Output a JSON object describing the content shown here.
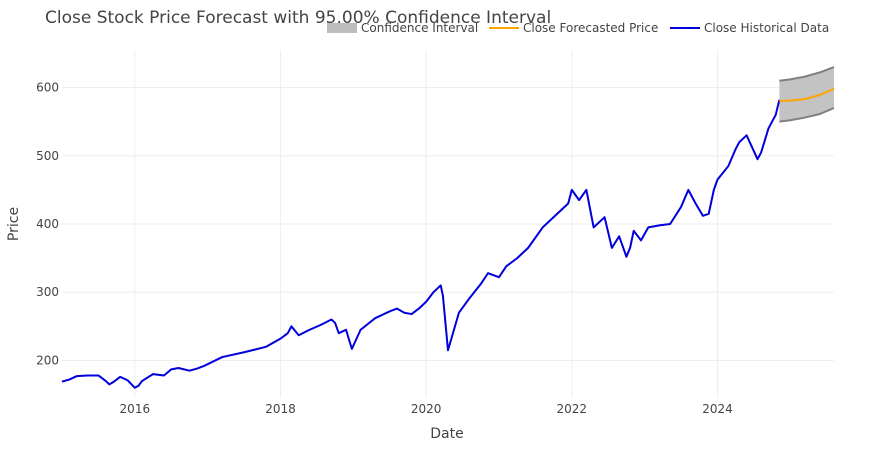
{
  "chart_data": {
    "type": "line",
    "title": "Close Stock Price Forecast with 95.00% Confidence Interval",
    "xlabel": "Date",
    "ylabel": "Price",
    "xlim": [
      2015.0,
      2025.6
    ],
    "ylim": [
      145,
      655
    ],
    "x_ticks": [
      2016,
      2018,
      2020,
      2022,
      2024
    ],
    "x_tick_labels": [
      "2016",
      "2018",
      "2020",
      "2022",
      "2024"
    ],
    "y_ticks": [
      200,
      300,
      400,
      500,
      600
    ],
    "y_tick_labels": [
      "200",
      "300",
      "400",
      "500",
      "600"
    ],
    "grid": true,
    "legend_position": "top-right",
    "legend": [
      "Confidence Interval",
      "Close Forecasted Price",
      "Close Historical Data"
    ],
    "colors": {
      "historical": "#0000dd",
      "forecast": "#ffa500",
      "band_fill": "#bdbdbd",
      "band_edge": "#808080",
      "grid": "#eeeeee",
      "text": "#444444"
    },
    "series": [
      {
        "name": "Close Historical Data",
        "x": [
          2015.0,
          2015.1,
          2015.2,
          2015.35,
          2015.5,
          2015.6,
          2015.65,
          2015.7,
          2015.8,
          2015.9,
          2016.0,
          2016.05,
          2016.1,
          2016.25,
          2016.4,
          2016.5,
          2016.6,
          2016.75,
          2016.85,
          2016.95,
          2017.2,
          2017.5,
          2017.8,
          2018.0,
          2018.05,
          2018.1,
          2018.15,
          2018.25,
          2018.4,
          2018.55,
          2018.7,
          2018.75,
          2018.8,
          2018.9,
          2018.98,
          2019.1,
          2019.3,
          2019.5,
          2019.6,
          2019.7,
          2019.8,
          2019.9,
          2020.0,
          2020.1,
          2020.15,
          2020.2,
          2020.23,
          2020.3,
          2020.45,
          2020.6,
          2020.75,
          2020.85,
          2021.0,
          2021.1,
          2021.25,
          2021.4,
          2021.6,
          2021.8,
          2021.95,
          2022.0,
          2022.1,
          2022.2,
          2022.3,
          2022.45,
          2022.55,
          2022.65,
          2022.75,
          2022.8,
          2022.85,
          2022.95,
          2023.05,
          2023.2,
          2023.35,
          2023.5,
          2023.6,
          2023.7,
          2023.8,
          2023.88,
          2023.95,
          2024.0,
          2024.15,
          2024.25,
          2024.3,
          2024.4,
          2024.55,
          2024.6,
          2024.7,
          2024.8,
          2024.85
        ],
        "y": [
          169,
          172,
          177,
          178,
          178,
          170,
          165,
          168,
          176,
          171,
          160,
          163,
          170,
          180,
          178,
          187,
          189,
          185,
          188,
          192,
          205,
          212,
          220,
          232,
          236,
          240,
          250,
          237,
          245,
          252,
          260,
          255,
          240,
          245,
          217,
          245,
          262,
          272,
          276,
          270,
          268,
          276,
          286,
          300,
          305,
          310,
          295,
          215,
          270,
          292,
          312,
          328,
          322,
          338,
          350,
          365,
          395,
          415,
          430,
          450,
          435,
          450,
          395,
          410,
          365,
          382,
          352,
          365,
          390,
          376,
          395,
          398,
          400,
          425,
          450,
          430,
          412,
          415,
          450,
          465,
          485,
          510,
          520,
          530,
          495,
          505,
          540,
          560,
          582
        ]
      },
      {
        "name": "Close Forecasted Price",
        "x": [
          2024.85,
          2025.0,
          2025.2,
          2025.4,
          2025.6
        ],
        "y": [
          580,
          581,
          583,
          589,
          598
        ]
      }
    ],
    "confidence_interval": {
      "name": "Confidence Interval",
      "x": [
        2024.85,
        2025.0,
        2025.2,
        2025.4,
        2025.6
      ],
      "lower": [
        550,
        552,
        556,
        561,
        570
      ],
      "upper": [
        610,
        612,
        616,
        622,
        630
      ]
    }
  }
}
